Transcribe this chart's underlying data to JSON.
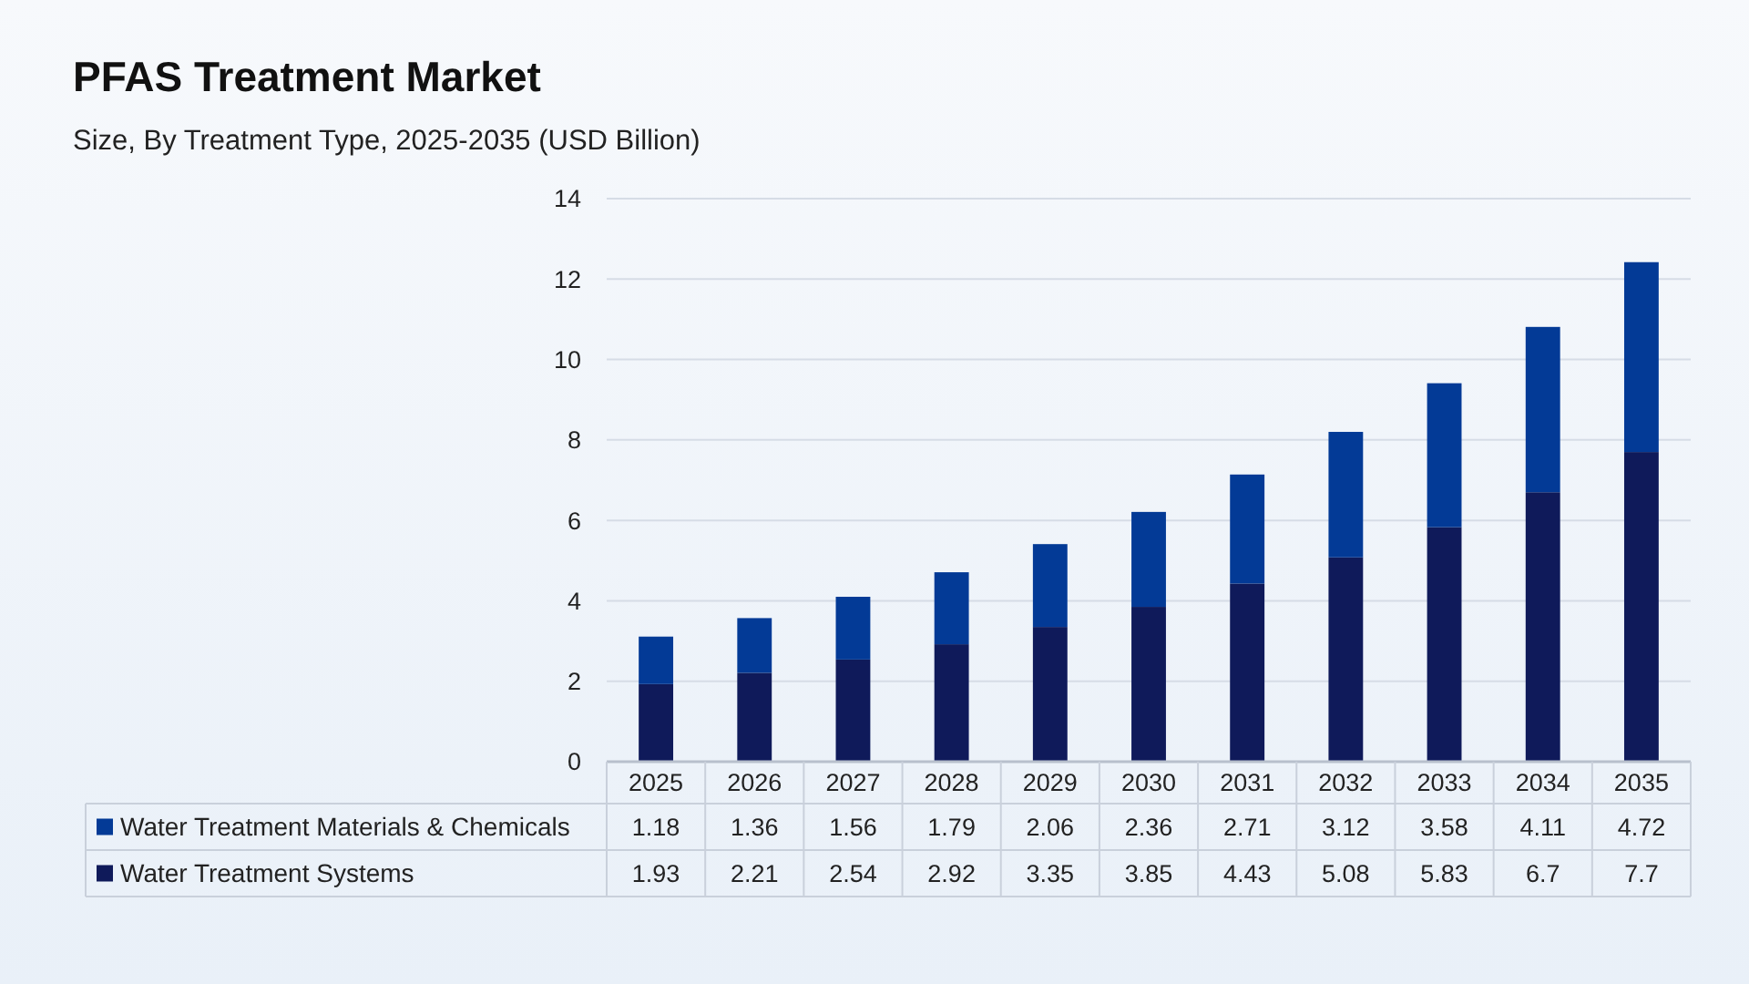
{
  "chart_data": {
    "type": "bar",
    "title": "PFAS Treatment Market",
    "subtitle": "Size, By Treatment Type, 2025-2035 (USD Billion)",
    "categories": [
      "2025",
      "2026",
      "2027",
      "2028",
      "2029",
      "2030",
      "2031",
      "2032",
      "2033",
      "2034",
      "2035"
    ],
    "series": [
      {
        "name": "Water Treatment Systems",
        "color": "#0f1a5a",
        "values": [
          1.93,
          2.21,
          2.54,
          2.92,
          3.35,
          3.85,
          4.43,
          5.08,
          5.83,
          6.7,
          7.7
        ]
      },
      {
        "name": "Water Treatment Materials & Chemicals",
        "color": "#033a96",
        "values": [
          1.18,
          1.36,
          1.56,
          1.79,
          2.06,
          2.36,
          2.71,
          3.12,
          3.58,
          4.11,
          4.72
        ]
      }
    ],
    "stacked": true,
    "ylim": [
      0,
      14
    ],
    "yticks": [
      0,
      2,
      4,
      6,
      8,
      10,
      12,
      14
    ],
    "grid": "y",
    "legend": "bottom",
    "data_labels": true
  }
}
